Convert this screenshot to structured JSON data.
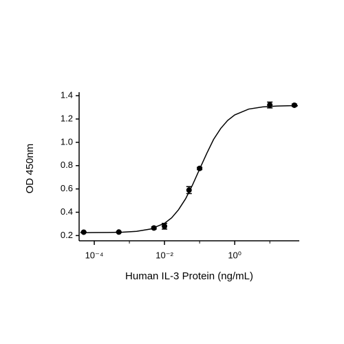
{
  "chart_data": {
    "type": "scatter",
    "x_label": "Human IL-3 Protein (ng/mL)",
    "y_label": "OD 450nm",
    "x_log": true,
    "xlim": [
      3.7e-05,
      69
    ],
    "ylim": [
      0.155,
      1.43
    ],
    "xticks": [
      {
        "value": 0.0001,
        "label": "10⁻⁴"
      },
      {
        "value": 0.01,
        "label": "10⁻²"
      },
      {
        "value": 1,
        "label": "10⁰"
      }
    ],
    "minor_xticks": [
      0.001,
      0.1,
      10
    ],
    "yticks": [
      0.2,
      0.4,
      0.6,
      0.8,
      {
        "value": 1.0,
        "label": "1.0"
      },
      1.2,
      1.4
    ],
    "series": [
      {
        "color": "#000000",
        "x": [
          5e-05,
          0.0005,
          0.005,
          0.01,
          0.05,
          0.1,
          10,
          50
        ],
        "values": [
          0.229,
          0.23,
          0.265,
          0.28,
          0.59,
          0.776,
          1.32,
          1.318
        ],
        "errors": [
          0.005,
          0.005,
          0.01,
          0.025,
          0.03,
          0.01,
          0.025,
          0.01
        ]
      }
    ],
    "fit": {
      "color": "#000000",
      "x": [
        4e-05,
        0.0001,
        0.00025,
        0.00063,
        0.0016,
        0.004,
        0.01,
        0.016,
        0.025,
        0.04,
        0.063,
        0.1,
        0.16,
        0.25,
        0.4,
        0.63,
        1,
        2.5,
        6.3,
        16,
        40,
        63
      ],
      "values": [
        0.225,
        0.2255,
        0.2265,
        0.229,
        0.236,
        0.256,
        0.305,
        0.352,
        0.421,
        0.516,
        0.635,
        0.77,
        0.905,
        1.025,
        1.119,
        1.188,
        1.235,
        1.285,
        1.304,
        1.311,
        1.314,
        1.3145
      ]
    }
  }
}
